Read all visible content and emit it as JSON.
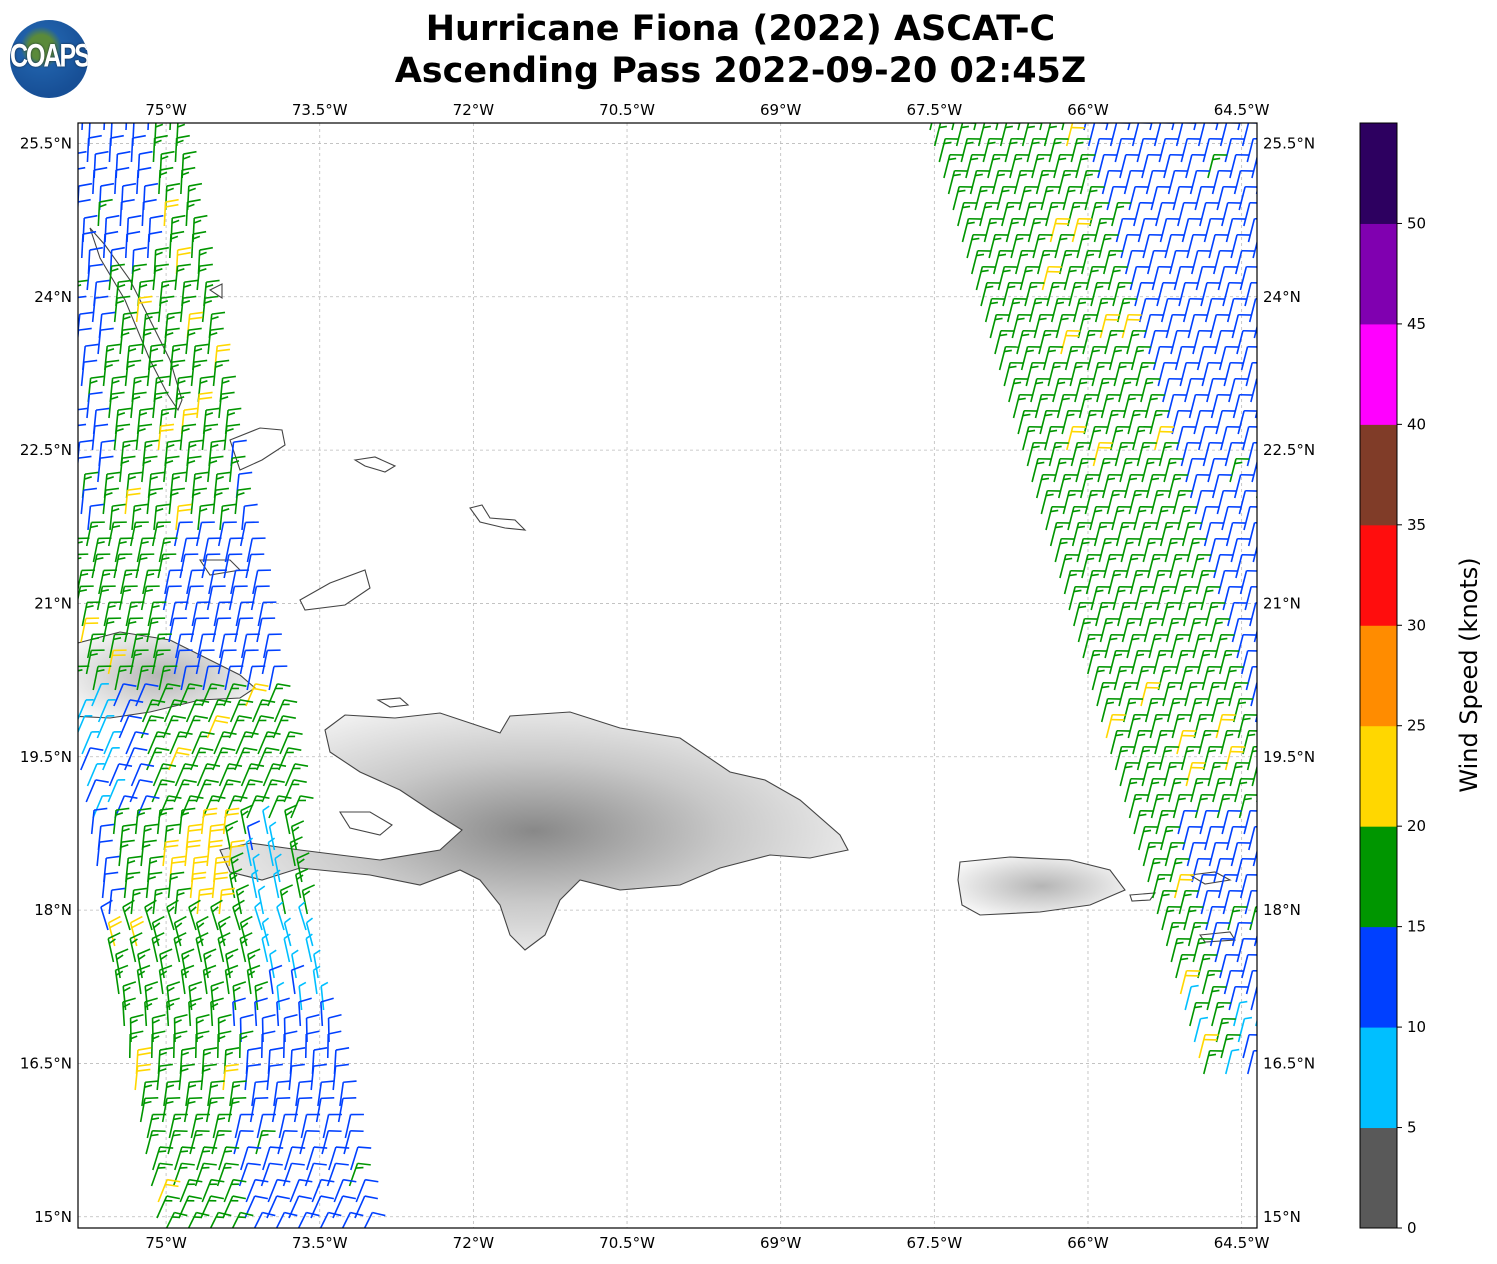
{
  "title": {
    "line1": "Hurricane Fiona (2022) ASCAT-C",
    "line2": "Ascending Pass 2022-09-20 02:45Z"
  },
  "logo": {
    "text": "COAPS"
  },
  "map": {
    "lon_ticks": [
      "75°W",
      "73.5°W",
      "72°W",
      "70.5°W",
      "69°W",
      "67.5°W",
      "66°W",
      "64.5°W"
    ],
    "lon_values": [
      -75,
      -73.5,
      -72,
      -70.5,
      -69,
      -67.5,
      -66,
      -64.5
    ],
    "lat_ticks": [
      "25.5°N",
      "24°N",
      "22.5°N",
      "21°N",
      "19.5°N",
      "18°N",
      "16.5°N",
      "15°N"
    ],
    "lat_values": [
      25.5,
      24,
      22.5,
      21,
      19.5,
      18,
      16.5,
      15
    ],
    "extent": {
      "lon": [
        -75.86,
        -64.35
      ],
      "lat": [
        14.89,
        25.7
      ]
    },
    "gridlines": true,
    "coast_color": "#444444",
    "layer": "wind barbs (knots)"
  },
  "colorbar": {
    "label": "Wind Speed (knots)",
    "ticks": [
      "0",
      "5",
      "10",
      "15",
      "20",
      "25",
      "30",
      "35",
      "40",
      "45",
      "50"
    ],
    "bounds": [
      0,
      5,
      10,
      15,
      20,
      25,
      30,
      35,
      40,
      45,
      50,
      55
    ],
    "colors": [
      "#595959",
      "#00bfff",
      "#0040ff",
      "#009600",
      "#ffd700",
      "#ff8c00",
      "#ff0d0d",
      "#803c28",
      "#ff00ff",
      "#8000b0",
      "#2d0060"
    ]
  }
}
